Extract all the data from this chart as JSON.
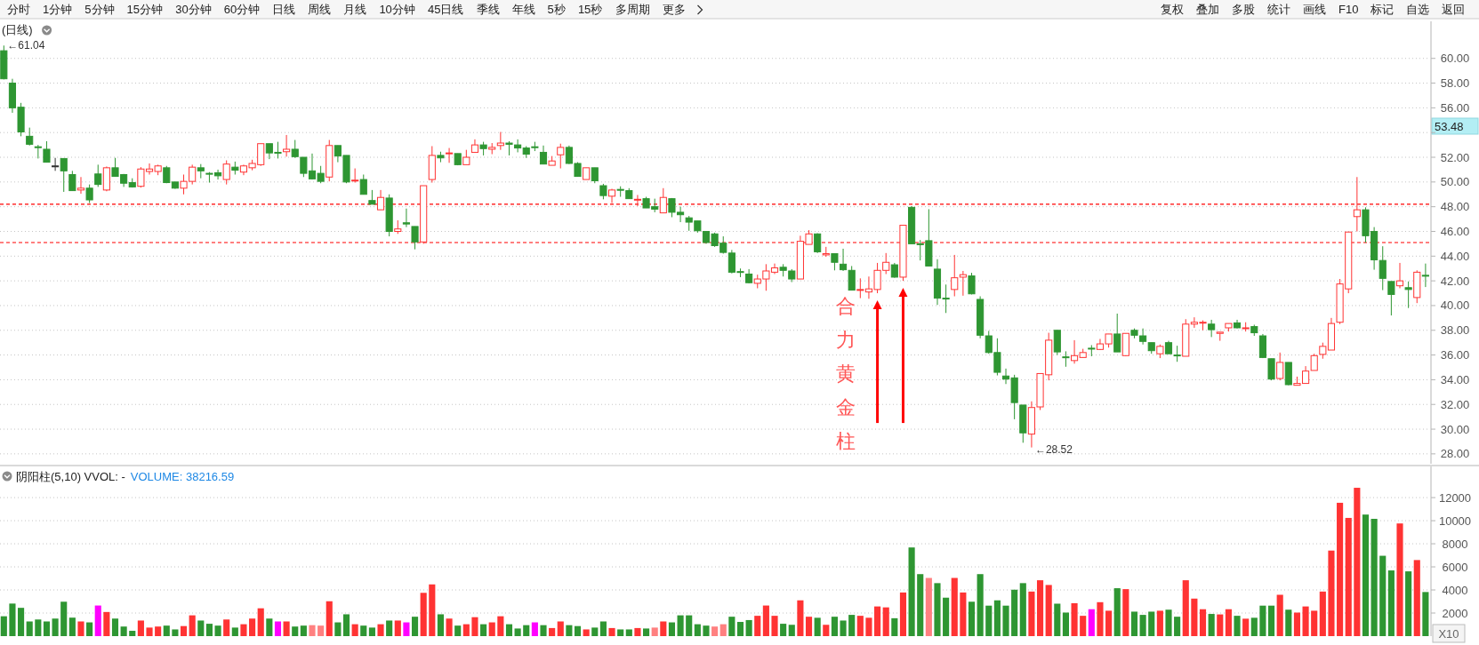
{
  "chart_data": [
    {
      "type": "other",
      "annotations": [
        "分时",
        "1分钟",
        "5分钟",
        "15分钟",
        "30分钟",
        "60分钟",
        "日线",
        "周线",
        "月线",
        "10分钟",
        "45日线",
        "季线",
        "年线",
        "5秒",
        "15秒",
        "多周期",
        "更多"
      ]
    },
    {
      "type": "other",
      "annotations": [
        "复权",
        "叠加",
        "多股",
        "统计",
        "画线",
        "F10",
        "标记",
        "自选",
        "返回"
      ]
    },
    {
      "type": "candlestick",
      "title": "(日线)",
      "tick_labels": "y",
      "grid": "y",
      "ylim": [
        27.2,
        63.0
      ],
      "yticks": [
        {
          "value": 28,
          "label": "28.00"
        },
        {
          "value": 30,
          "label": "30.00"
        },
        {
          "value": 32,
          "label": "32.00"
        },
        {
          "value": 34,
          "label": "34.00"
        },
        {
          "value": 36,
          "label": "36.00"
        },
        {
          "value": 38,
          "label": "38.00"
        },
        {
          "value": 40,
          "label": "40.00"
        },
        {
          "value": 42,
          "label": "42.00"
        },
        {
          "value": 44,
          "label": "44.00"
        },
        {
          "value": 46,
          "label": "46.00"
        },
        {
          "value": 48,
          "label": "48.00"
        },
        {
          "value": 50,
          "label": "50.00"
        },
        {
          "value": 52,
          "label": "52.00"
        },
        {
          "value": 54,
          "label": null
        },
        {
          "value": 56,
          "label": "56.00"
        },
        {
          "value": 58,
          "label": "58.00"
        },
        {
          "value": 60,
          "label": "60.00"
        }
      ],
      "ref_lines": [
        {
          "axis": "y",
          "value": 48.2,
          "color": "#ff0000",
          "line_style": "dashed"
        },
        {
          "axis": "y",
          "value": 45.1,
          "color": "#ff0000",
          "line_style": "dashed"
        }
      ],
      "annotations": [
        "←61.04",
        "←28.52",
        "53.48",
        "合力黄金柱"
      ],
      "categories": [
        null,
        null,
        null,
        null,
        null,
        null,
        null,
        null,
        null,
        null,
        null,
        null,
        null,
        null,
        null,
        null,
        null,
        null,
        null,
        null,
        null,
        null,
        null,
        null,
        null,
        null,
        null,
        null,
        null,
        null,
        null,
        null,
        null,
        null,
        null,
        null,
        null,
        null,
        null,
        null,
        null,
        null,
        null,
        null,
        null,
        null,
        null,
        null,
        null,
        null,
        null,
        null,
        null,
        null,
        null,
        null,
        null,
        null,
        null,
        null,
        null,
        null,
        null,
        null,
        null,
        null,
        null,
        null,
        null,
        null,
        null,
        null,
        null,
        null,
        null,
        null,
        null,
        null,
        null,
        null,
        null,
        null,
        null,
        null,
        null,
        null,
        null,
        null,
        null,
        null,
        null,
        null,
        null,
        null,
        null,
        null,
        null,
        null,
        null,
        null,
        null,
        null,
        null,
        null,
        null,
        null,
        null,
        null,
        null,
        null,
        null,
        null,
        null,
        null,
        null,
        null,
        null,
        null,
        null,
        null,
        null,
        null,
        null,
        null,
        null,
        null,
        null,
        null,
        null,
        null,
        null,
        null,
        null,
        null,
        null,
        null,
        null,
        null,
        null,
        null,
        null,
        null,
        null,
        null,
        null,
        null,
        null,
        null,
        null,
        null,
        null,
        null,
        null,
        null,
        null,
        null,
        null,
        null,
        null,
        null,
        null,
        null,
        null,
        null,
        null,
        null,
        null
      ],
      "ohlc": [
        [
          60.62,
          61.04,
          58.3,
          58.35
        ],
        [
          58.0,
          58.35,
          55.6,
          56.0
        ],
        [
          56.05,
          56.4,
          53.7,
          54.05
        ],
        [
          53.7,
          54.4,
          52.95,
          53.05
        ],
        [
          52.85,
          53.0,
          51.9,
          52.8
        ],
        [
          52.65,
          53.3,
          51.6,
          51.6
        ],
        [
          51.3,
          51.95,
          50.9,
          51.3
        ],
        [
          51.9,
          51.9,
          49.2,
          50.9
        ],
        [
          50.6,
          50.9,
          49.3,
          49.3
        ],
        [
          49.35,
          50.4,
          49.05,
          49.5
        ],
        [
          49.5,
          49.8,
          48.3,
          48.55
        ],
        [
          50.65,
          51.4,
          49.6,
          49.8
        ],
        [
          49.35,
          51.25,
          49.25,
          51.15
        ],
        [
          51.15,
          51.95,
          50.45,
          50.45
        ],
        [
          50.6,
          50.65,
          49.6,
          49.9
        ],
        [
          49.95,
          50.3,
          49.55,
          49.6
        ],
        [
          49.65,
          51.2,
          49.55,
          51.05
        ],
        [
          50.85,
          51.5,
          50.6,
          51.05
        ],
        [
          50.85,
          51.4,
          50.55,
          51.3
        ],
        [
          51.15,
          51.3,
          49.9,
          49.95
        ],
        [
          50.0,
          50.0,
          49.45,
          49.5
        ],
        [
          49.5,
          50.6,
          49.0,
          50.05
        ],
        [
          50.05,
          51.4,
          49.8,
          51.2
        ],
        [
          51.15,
          51.45,
          50.3,
          50.9
        ],
        [
          50.7,
          50.8,
          49.95,
          50.65
        ],
        [
          50.75,
          51.0,
          50.2,
          50.5
        ],
        [
          50.2,
          51.75,
          49.8,
          51.45
        ],
        [
          51.2,
          51.65,
          50.6,
          50.95
        ],
        [
          50.8,
          51.4,
          50.55,
          51.3
        ],
        [
          51.15,
          51.8,
          50.95,
          51.5
        ],
        [
          51.4,
          53.1,
          51.3,
          53.1
        ],
        [
          53.1,
          53.1,
          51.85,
          52.35
        ],
        [
          52.4,
          53.25,
          51.9,
          52.35
        ],
        [
          52.45,
          53.8,
          52.05,
          52.65
        ],
        [
          52.65,
          53.4,
          51.95,
          52.05
        ],
        [
          52.0,
          52.0,
          50.4,
          50.7
        ],
        [
          50.9,
          52.3,
          50.2,
          50.25
        ],
        [
          50.7,
          51.3,
          49.9,
          50.05
        ],
        [
          50.4,
          53.4,
          50.05,
          52.95
        ],
        [
          52.95,
          52.95,
          51.6,
          52.1
        ],
        [
          52.15,
          52.15,
          49.9,
          50.0
        ],
        [
          50.1,
          51.1,
          49.95,
          50.15
        ],
        [
          50.2,
          50.6,
          49.0,
          49.0
        ],
        [
          48.5,
          49.35,
          48.2,
          48.2
        ],
        [
          47.75,
          49.35,
          47.75,
          48.75
        ],
        [
          48.7,
          49.0,
          45.6,
          46.0
        ],
        [
          46.0,
          46.9,
          45.8,
          46.2
        ],
        [
          46.7,
          47.85,
          46.35,
          46.6
        ],
        [
          46.4,
          46.4,
          44.55,
          45.15
        ],
        [
          45.15,
          49.7,
          45.0,
          49.7
        ],
        [
          50.2,
          52.9,
          49.95,
          52.15
        ],
        [
          52.15,
          52.45,
          51.6,
          51.95
        ],
        [
          52.3,
          52.75,
          51.55,
          52.35
        ],
        [
          52.3,
          52.3,
          51.35,
          51.4
        ],
        [
          51.4,
          52.6,
          51.4,
          52.0
        ],
        [
          52.4,
          53.45,
          52.4,
          53.0
        ],
        [
          53.0,
          53.25,
          52.15,
          52.7
        ],
        [
          52.65,
          53.15,
          52.25,
          52.8
        ],
        [
          52.95,
          54.05,
          52.6,
          53.15
        ],
        [
          53.15,
          53.3,
          52.15,
          53.05
        ],
        [
          53.0,
          53.45,
          52.4,
          52.75
        ],
        [
          52.75,
          52.9,
          51.95,
          52.25
        ],
        [
          52.85,
          53.25,
          52.5,
          52.8
        ],
        [
          52.4,
          52.95,
          51.45,
          51.45
        ],
        [
          51.35,
          52.1,
          51.35,
          51.7
        ],
        [
          52.2,
          53.1,
          51.1,
          52.8
        ],
        [
          52.8,
          52.95,
          51.45,
          51.5
        ],
        [
          51.5,
          51.6,
          50.45,
          50.45
        ],
        [
          50.2,
          51.15,
          50.2,
          51.15
        ],
        [
          51.15,
          51.15,
          49.9,
          50.1
        ],
        [
          49.7,
          49.85,
          48.6,
          48.9
        ],
        [
          48.85,
          49.45,
          48.3,
          49.35
        ],
        [
          49.4,
          49.65,
          48.8,
          49.35
        ],
        [
          49.3,
          49.5,
          48.65,
          48.65
        ],
        [
          48.55,
          48.95,
          48.05,
          48.6
        ],
        [
          48.65,
          48.8,
          47.9,
          47.9
        ],
        [
          48.0,
          48.65,
          47.55,
          47.8
        ],
        [
          47.5,
          49.5,
          47.5,
          48.75
        ],
        [
          48.65,
          48.7,
          47.15,
          47.55
        ],
        [
          47.55,
          48.0,
          46.75,
          47.35
        ],
        [
          47.1,
          47.25,
          46.05,
          46.75
        ],
        [
          46.85,
          46.85,
          45.9,
          46.05
        ],
        [
          46.0,
          46.0,
          45.0,
          45.1
        ],
        [
          45.8,
          45.9,
          44.75,
          44.85
        ],
        [
          45.05,
          45.6,
          44.2,
          44.3
        ],
        [
          44.25,
          44.5,
          42.6,
          42.7
        ],
        [
          42.75,
          43.0,
          42.3,
          42.7
        ],
        [
          42.55,
          42.95,
          41.8,
          41.85
        ],
        [
          41.8,
          42.5,
          41.4,
          42.15
        ],
        [
          42.15,
          43.35,
          41.2,
          42.8
        ],
        [
          42.7,
          43.4,
          42.55,
          43.05
        ],
        [
          43.1,
          43.35,
          42.35,
          42.85
        ],
        [
          42.8,
          42.95,
          41.9,
          42.15
        ],
        [
          42.15,
          45.65,
          42.15,
          45.2
        ],
        [
          44.95,
          46.1,
          44.95,
          45.8
        ],
        [
          45.8,
          45.85,
          44.25,
          44.35
        ],
        [
          44.1,
          44.75,
          43.95,
          44.2
        ],
        [
          44.2,
          44.2,
          42.85,
          43.5
        ],
        [
          43.35,
          44.6,
          42.8,
          42.9
        ],
        [
          42.85,
          43.2,
          41.25,
          41.25
        ],
        [
          41.25,
          42.2,
          40.6,
          41.3
        ],
        [
          41.1,
          42.35,
          40.55,
          41.35
        ],
        [
          41.3,
          43.45,
          41.0,
          42.85
        ],
        [
          42.85,
          44.25,
          42.55,
          43.5
        ],
        [
          43.3,
          43.45,
          42.25,
          42.3
        ],
        [
          42.3,
          46.5,
          42.0,
          46.5
        ],
        [
          47.95,
          48.05,
          45.0,
          45.0
        ],
        [
          45.0,
          45.3,
          43.65,
          44.95
        ],
        [
          45.25,
          47.8,
          43.2,
          43.2
        ],
        [
          42.95,
          43.75,
          40.05,
          40.6
        ],
        [
          40.6,
          41.7,
          39.4,
          40.55
        ],
        [
          41.3,
          44.1,
          40.75,
          42.25
        ],
        [
          42.3,
          42.8,
          40.8,
          42.5
        ],
        [
          42.4,
          42.65,
          40.9,
          40.95
        ],
        [
          40.5,
          40.75,
          37.35,
          37.6
        ],
        [
          37.55,
          37.95,
          36.1,
          36.2
        ],
        [
          36.2,
          37.35,
          34.35,
          34.6
        ],
        [
          34.3,
          34.9,
          33.65,
          34.05
        ],
        [
          34.15,
          34.4,
          30.8,
          32.15
        ],
        [
          31.95,
          31.95,
          28.9,
          29.7
        ],
        [
          29.6,
          32.25,
          28.52,
          31.75
        ],
        [
          31.8,
          34.5,
          31.55,
          34.5
        ],
        [
          34.4,
          37.8,
          33.95,
          37.2
        ],
        [
          38.0,
          38.0,
          36.0,
          36.25
        ],
        [
          35.85,
          36.3,
          35.05,
          35.8
        ],
        [
          35.55,
          37.2,
          35.3,
          35.95
        ],
        [
          35.8,
          36.5,
          35.8,
          36.2
        ],
        [
          36.55,
          36.8,
          35.9,
          36.5
        ],
        [
          36.45,
          37.3,
          36.4,
          36.9
        ],
        [
          36.9,
          37.7,
          36.6,
          37.7
        ],
        [
          37.7,
          39.35,
          36.25,
          36.25
        ],
        [
          35.95,
          37.75,
          35.9,
          37.75
        ],
        [
          38.0,
          38.15,
          37.35,
          37.6
        ],
        [
          37.55,
          38.15,
          36.85,
          37.1
        ],
        [
          37.0,
          37.0,
          36.1,
          36.35
        ],
        [
          36.1,
          36.85,
          35.75,
          36.7
        ],
        [
          37.0,
          37.15,
          36.1,
          36.1
        ],
        [
          36.0,
          36.75,
          35.45,
          35.95
        ],
        [
          35.9,
          38.9,
          35.9,
          38.5
        ],
        [
          38.5,
          39.05,
          38.2,
          38.65
        ],
        [
          38.6,
          38.8,
          38.0,
          38.65
        ],
        [
          38.5,
          38.85,
          37.45,
          38.05
        ],
        [
          37.75,
          37.85,
          37.15,
          37.85
        ],
        [
          38.2,
          38.55,
          37.9,
          38.55
        ],
        [
          38.6,
          38.85,
          38.15,
          38.2
        ],
        [
          38.15,
          38.65,
          37.9,
          38.2
        ],
        [
          38.3,
          38.45,
          37.55,
          37.8
        ],
        [
          37.55,
          37.7,
          35.75,
          35.8
        ],
        [
          35.7,
          35.7,
          33.95,
          34.05
        ],
        [
          34.1,
          36.2,
          33.95,
          35.4
        ],
        [
          35.4,
          35.4,
          33.55,
          33.6
        ],
        [
          33.55,
          34.25,
          33.55,
          33.7
        ],
        [
          33.7,
          35.1,
          33.7,
          34.7
        ],
        [
          34.75,
          36.1,
          34.75,
          35.95
        ],
        [
          36.05,
          37.0,
          35.7,
          36.7
        ],
        [
          36.4,
          39.0,
          36.4,
          38.55
        ],
        [
          38.65,
          42.15,
          38.5,
          41.75
        ],
        [
          41.35,
          45.95,
          41.0,
          45.95
        ],
        [
          47.2,
          50.4,
          46.0,
          47.75
        ],
        [
          47.75,
          47.95,
          45.1,
          45.65
        ],
        [
          46.0,
          46.35,
          42.9,
          43.7
        ],
        [
          43.65,
          44.8,
          41.25,
          42.2
        ],
        [
          41.95,
          41.95,
          39.2,
          40.9
        ],
        [
          41.6,
          43.45,
          41.4,
          42.0
        ],
        [
          41.45,
          41.95,
          39.8,
          41.3
        ],
        [
          40.65,
          42.85,
          40.2,
          42.7
        ],
        [
          42.45,
          43.4,
          41.5,
          42.4
        ]
      ],
      "colors": [
        "#2e9632",
        "#2e9632",
        "#2e9632",
        "#2e9632",
        "#2e9632",
        "#2e9632",
        "#333333",
        "#2e9632",
        "#2e9632",
        "#ff3333",
        "#2e9632",
        "#2e9632",
        "#ff3333",
        "#2e9632",
        "#2e9632",
        "#2e9632",
        "#ff3333",
        "#ff3333",
        "#ff3333",
        "#2e9632",
        "#2e9632",
        "#ff3333",
        "#ff3333",
        "#2e9632",
        "#2e9632",
        "#2e9632",
        "#ff3333",
        "#2e9632",
        "#ff3333",
        "#ff3333",
        "#ff3333",
        "#2e9632",
        "#2e9632",
        "#ff3333",
        "#2e9632",
        "#2e9632",
        "#2e9632",
        "#2e9632",
        "#ff3333",
        "#2e9632",
        "#2e9632",
        "#ff3333",
        "#2e9632",
        "#2e9632",
        "#ff3333",
        "#2e9632",
        "#ff3333",
        "#2e9632",
        "#2e9632",
        "#ff3333",
        "#ff3333",
        "#2e9632",
        "#ff3333",
        "#2e9632",
        "#ff3333",
        "#ff3333",
        "#2e9632",
        "#ff3333",
        "#ff3333",
        "#2e9632",
        "#2e9632",
        "#2e9632",
        "#2e9632",
        "#2e9632",
        "#ff3333",
        "#ff3333",
        "#2e9632",
        "#2e9632",
        "#ff3333",
        "#2e9632",
        "#2e9632",
        "#ff3333",
        "#2e9632",
        "#2e9632",
        "#ff3333",
        "#2e9632",
        "#2e9632",
        "#ff3333",
        "#2e9632",
        "#2e9632",
        "#2e9632",
        "#2e9632",
        "#2e9632",
        "#2e9632",
        "#2e9632",
        "#2e9632",
        "#2e9632",
        "#2e9632",
        "#ff3333",
        "#ff3333",
        "#ff3333",
        "#2e9632",
        "#2e9632",
        "#ff3333",
        "#ff3333",
        "#2e9632",
        "#ff3333",
        "#2e9632",
        "#2e9632",
        "#2e9632",
        "#ff3333",
        "#ff3333",
        "#ff3333",
        "#ff3333",
        "#2e9632",
        "#ff3333",
        "#2e9632",
        "#2e9632",
        "#2e9632",
        "#2e9632",
        "#2e9632",
        "#ff3333",
        "#ff3333",
        "#2e9632",
        "#2e9632",
        "#2e9632",
        "#2e9632",
        "#2e9632",
        "#2e9632",
        "#2e9632",
        "#ff3333",
        "#ff3333",
        "#ff3333",
        "#2e9632",
        "#2e9632",
        "#ff3333",
        "#ff3333",
        "#2e9632",
        "#ff3333",
        "#ff3333",
        "#2e9632",
        "#ff3333",
        "#2e9632",
        "#2e9632",
        "#2e9632",
        "#ff3333",
        "#2e9632",
        "#2e9632",
        "#ff3333",
        "#ff3333",
        "#ff3333",
        "#2e9632",
        "#ff3333",
        "#ff3333",
        "#2e9632",
        "#ff3333",
        "#2e9632",
        "#2e9632",
        "#2e9632",
        "#ff3333",
        "#2e9632",
        "#ff3333",
        "#ff3333",
        "#ff3333",
        "#ff3333",
        "#ff3333",
        "#ff3333",
        "#ff3333",
        "#ff3333",
        "#2e9632",
        "#2e9632",
        "#2e9632",
        "#2e9632",
        "#ff3333",
        "#2e9632",
        "#ff3333",
        "#2e9632"
      ]
    },
    {
      "type": "bar",
      "title": "阴阳柱(5,10) VVOL: -",
      "subtitle": "VOLUME: 38216.59",
      "tick_labels": "y",
      "grid": "y",
      "ylim": [
        0,
        14700
      ],
      "yticks": [
        2000,
        4000,
        6000,
        8000,
        10000,
        12000
      ],
      "annotations": [
        "X10"
      ],
      "categories": [
        null,
        null,
        null,
        null,
        null,
        null,
        null,
        null,
        null,
        null,
        null,
        null,
        null,
        null,
        null,
        null,
        null,
        null,
        null,
        null,
        null,
        null,
        null,
        null,
        null,
        null,
        null,
        null,
        null,
        null,
        null,
        null,
        null,
        null,
        null,
        null,
        null,
        null,
        null,
        null,
        null,
        null,
        null,
        null,
        null,
        null,
        null,
        null,
        null,
        null,
        null,
        null,
        null,
        null,
        null,
        null,
        null,
        null,
        null,
        null,
        null,
        null,
        null,
        null,
        null,
        null,
        null,
        null,
        null,
        null,
        null,
        null,
        null,
        null,
        null,
        null,
        null,
        null,
        null,
        null,
        null,
        null,
        null,
        null,
        null,
        null,
        null,
        null,
        null,
        null,
        null,
        null,
        null,
        null,
        null,
        null,
        null,
        null,
        null,
        null,
        null,
        null,
        null,
        null,
        null,
        null,
        null,
        null,
        null,
        null,
        null,
        null,
        null,
        null,
        null,
        null,
        null,
        null,
        null,
        null,
        null,
        null,
        null,
        null,
        null,
        null,
        null,
        null,
        null,
        null,
        null,
        null,
        null,
        null,
        null,
        null,
        null,
        null,
        null,
        null,
        null,
        null,
        null,
        null,
        null,
        null,
        null,
        null,
        null,
        null,
        null,
        null,
        null,
        null,
        null,
        null,
        null,
        null,
        null,
        null,
        null,
        null,
        null,
        null,
        null,
        null,
        null
      ],
      "values": [
        1720,
        2820,
        2450,
        1270,
        1440,
        1270,
        1520,
        2980,
        1600,
        1270,
        1190,
        2650,
        2090,
        1520,
        830,
        460,
        1350,
        740,
        830,
        910,
        580,
        870,
        1800,
        1350,
        1070,
        910,
        1440,
        740,
        1030,
        1520,
        2410,
        1520,
        1270,
        1270,
        830,
        910,
        950,
        910,
        3020,
        1190,
        1890,
        1030,
        910,
        740,
        1030,
        1350,
        1350,
        1190,
        1680,
        3750,
        4480,
        1890,
        1520,
        910,
        1030,
        1640,
        1030,
        1190,
        1720,
        1030,
        660,
        950,
        1190,
        950,
        700,
        1270,
        950,
        870,
        580,
        740,
        1270,
        700,
        580,
        580,
        700,
        660,
        740,
        1270,
        1190,
        1800,
        1800,
        1030,
        910,
        830,
        1030,
        1680,
        1230,
        1390,
        1760,
        2650,
        1760,
        1070,
        980,
        3100,
        1680,
        1590,
        980,
        1680,
        1350,
        1840,
        1760,
        1590,
        2570,
        2490,
        1550,
        3780,
        7680,
        5370,
        5040,
        4590,
        3330,
        5040,
        3780,
        2980,
        5370,
        2640,
        3100,
        2640,
        4020,
        4590,
        3860,
        4840,
        4430,
        2810,
        2040,
        2850,
        1760,
        2330,
        2940,
        2200,
        4150,
        4070,
        2120,
        1840,
        2120,
        2200,
        2290,
        1680,
        4840,
        3250,
        2330,
        1920,
        1880,
        2330,
        1760,
        1510,
        1590,
        2640,
        2640,
        3580,
        2290,
        2040,
        2570,
        2200,
        3860,
        7410,
        11550,
        10240,
        12850,
        10530,
        10160,
        6960,
        5690,
        9760,
        5610,
        6590,
        3820
      ],
      "colors": [
        "#2e9632",
        "#2e9632",
        "#2e9632",
        "#2e9632",
        "#2e9632",
        "#2e9632",
        "#2e9632",
        "#2e9632",
        "#2e9632",
        "#ff3333",
        "#2e9632",
        "#ff00ff",
        "#ff3333",
        "#2e9632",
        "#2e9632",
        "#2e9632",
        "#ff3333",
        "#ff3333",
        "#ff3333",
        "#2e9632",
        "#2e9632",
        "#ff3333",
        "#ff3333",
        "#2e9632",
        "#2e9632",
        "#2e9632",
        "#ff3333",
        "#2e9632",
        "#ff3333",
        "#ff3333",
        "#ff3333",
        "#2e9632",
        "#ff00ff",
        "#ff3333",
        "#2e9632",
        "#2e9632",
        "#ff8080",
        "#ff8080",
        "#ff3333",
        "#2e9632",
        "#2e9632",
        "#ff3333",
        "#2e9632",
        "#2e9632",
        "#ff3333",
        "#2e9632",
        "#ff3333",
        "#ff00ff",
        "#2e9632",
        "#ff3333",
        "#ff3333",
        "#2e9632",
        "#ff3333",
        "#2e9632",
        "#ff3333",
        "#ff3333",
        "#2e9632",
        "#ff3333",
        "#ff3333",
        "#2e9632",
        "#2e9632",
        "#2e9632",
        "#ff00ff",
        "#2e9632",
        "#ff3333",
        "#ff3333",
        "#2e9632",
        "#2e9632",
        "#ff3333",
        "#2e9632",
        "#2e9632",
        "#ff3333",
        "#2e9632",
        "#2e9632",
        "#ff3333",
        "#2e9632",
        "#ff8080",
        "#ff3333",
        "#2e9632",
        "#2e9632",
        "#2e9632",
        "#2e9632",
        "#2e9632",
        "#ff8080",
        "#ff8080",
        "#2e9632",
        "#2e9632",
        "#2e9632",
        "#ff3333",
        "#ff3333",
        "#ff3333",
        "#2e9632",
        "#2e9632",
        "#ff3333",
        "#ff3333",
        "#2e9632",
        "#ff3333",
        "#2e9632",
        "#2e9632",
        "#2e9632",
        "#ff3333",
        "#ff3333",
        "#ff3333",
        "#ff3333",
        "#2e9632",
        "#ff3333",
        "#2e9632",
        "#2e9632",
        "#ff8080",
        "#2e9632",
        "#2e9632",
        "#ff3333",
        "#ff3333",
        "#2e9632",
        "#2e9632",
        "#2e9632",
        "#2e9632",
        "#2e9632",
        "#2e9632",
        "#2e9632",
        "#ff3333",
        "#ff3333",
        "#ff3333",
        "#2e9632",
        "#2e9632",
        "#ff3333",
        "#ff3333",
        "#ff00ff",
        "#ff3333",
        "#ff3333",
        "#2e9632",
        "#ff3333",
        "#2e9632",
        "#2e9632",
        "#2e9632",
        "#ff3333",
        "#2e9632",
        "#2e9632",
        "#ff3333",
        "#ff3333",
        "#ff3333",
        "#2e9632",
        "#ff3333",
        "#ff3333",
        "#2e9632",
        "#ff3333",
        "#2e9632",
        "#2e9632",
        "#2e9632",
        "#ff3333",
        "#2e9632",
        "#ff3333",
        "#ff3333",
        "#ff3333",
        "#ff3333",
        "#ff3333",
        "#ff3333",
        "#ff3333",
        "#ff3333",
        "#2e9632",
        "#2e9632",
        "#2e9632",
        "#2e9632",
        "#ff3333",
        "#2e9632",
        "#ff3333",
        "#2e9632"
      ]
    }
  ]
}
